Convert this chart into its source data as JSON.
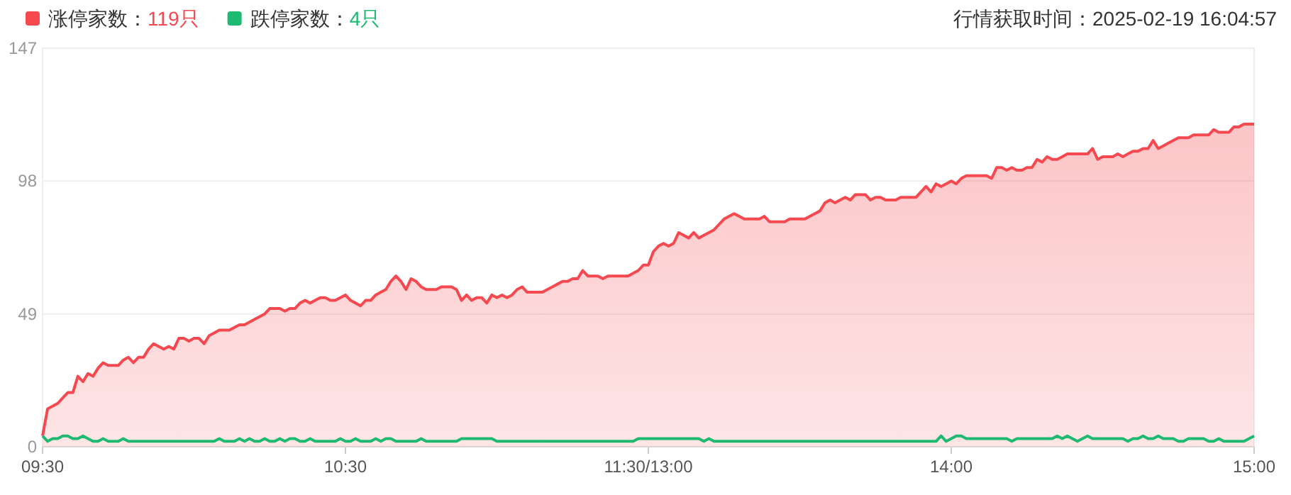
{
  "chart_data": {
    "type": "area",
    "ylim": [
      0,
      147
    ],
    "yticks": [
      0,
      49,
      98,
      147
    ],
    "categories": [
      "09:30",
      null,
      null,
      null,
      null,
      null,
      null,
      null,
      null,
      null,
      null,
      null,
      null,
      null,
      null,
      null,
      null,
      null,
      null,
      null,
      null,
      null,
      null,
      null,
      null,
      null,
      null,
      null,
      null,
      null,
      null,
      null,
      null,
      null,
      null,
      null,
      null,
      null,
      null,
      null,
      null,
      null,
      null,
      null,
      null,
      null,
      null,
      null,
      null,
      null,
      null,
      null,
      null,
      null,
      null,
      null,
      null,
      null,
      null,
      null,
      "10:30",
      null,
      null,
      null,
      null,
      null,
      null,
      null,
      null,
      null,
      null,
      null,
      null,
      null,
      null,
      null,
      null,
      null,
      null,
      null,
      null,
      null,
      null,
      null,
      null,
      null,
      null,
      null,
      null,
      null,
      null,
      null,
      null,
      null,
      null,
      null,
      null,
      null,
      null,
      null,
      null,
      null,
      null,
      null,
      null,
      null,
      null,
      null,
      null,
      null,
      null,
      null,
      null,
      null,
      null,
      null,
      null,
      null,
      null,
      null,
      "11:30/13:00",
      null,
      null,
      null,
      null,
      null,
      null,
      null,
      null,
      null,
      null,
      null,
      null,
      null,
      null,
      null,
      null,
      null,
      null,
      null,
      null,
      null,
      null,
      null,
      null,
      null,
      null,
      null,
      null,
      null,
      null,
      null,
      null,
      null,
      null,
      null,
      null,
      null,
      null,
      null,
      null,
      null,
      null,
      null,
      null,
      null,
      null,
      null,
      null,
      null,
      null,
      null,
      null,
      null,
      null,
      null,
      null,
      null,
      null,
      null,
      "14:00",
      null,
      null,
      null,
      null,
      null,
      null,
      null,
      null,
      null,
      null,
      null,
      null,
      null,
      null,
      null,
      null,
      null,
      null,
      null,
      null,
      null,
      null,
      null,
      null,
      null,
      null,
      null,
      null,
      null,
      null,
      null,
      null,
      null,
      null,
      null,
      null,
      null,
      null,
      null,
      null,
      null,
      null,
      null,
      null,
      null,
      null,
      null,
      null,
      null,
      null,
      null,
      null,
      null,
      null,
      null,
      null,
      null,
      null,
      null,
      "15:00"
    ],
    "grid": "y",
    "legend": "top left",
    "annotations": [
      "行情获取时间：2025-02-19 16:04:57"
    ],
    "series": [
      {
        "name": "涨停家数：119只",
        "color": "#f5484f",
        "values": [
          4,
          14,
          15,
          16,
          18,
          20,
          20,
          26,
          24,
          27,
          26,
          29,
          31,
          30,
          30,
          30,
          32,
          33,
          31,
          33,
          33,
          36,
          38,
          37,
          36,
          37,
          36,
          40,
          40,
          39,
          40,
          40,
          38,
          41,
          42,
          43,
          43,
          43,
          44,
          45,
          45,
          46,
          47,
          48,
          49,
          51,
          51,
          51,
          50,
          51,
          51,
          53,
          54,
          53,
          54,
          55,
          55,
          54,
          54,
          55,
          56,
          54,
          53,
          52,
          54,
          54,
          56,
          57,
          58,
          61,
          63,
          61,
          58,
          62,
          61,
          59,
          58,
          58,
          58,
          59,
          59,
          59,
          58,
          54,
          56,
          54,
          55,
          55,
          53,
          56,
          55,
          56,
          55,
          56,
          58,
          59,
          57,
          57,
          57,
          57,
          58,
          59,
          60,
          61,
          61,
          62,
          62,
          65,
          63,
          63,
          63,
          62,
          63,
          63,
          63,
          63,
          63,
          64,
          65,
          67,
          67,
          72,
          74,
          75,
          74,
          75,
          79,
          78,
          77,
          79,
          77,
          78,
          79,
          80,
          82,
          84,
          85,
          86,
          85,
          84,
          84,
          84,
          84,
          85,
          83,
          83,
          83,
          83,
          84,
          84,
          84,
          84,
          85,
          86,
          87,
          90,
          91,
          90,
          91,
          92,
          91,
          93,
          93,
          93,
          91,
          92,
          92,
          91,
          91,
          91,
          92,
          92,
          92,
          92,
          94,
          96,
          94,
          97,
          96,
          97,
          98,
          97,
          99,
          100,
          100,
          100,
          100,
          100,
          99,
          103,
          103,
          102,
          103,
          102,
          102,
          103,
          103,
          106,
          105,
          107,
          106,
          106,
          107,
          108,
          108,
          108,
          108,
          108,
          110,
          106,
          107,
          107,
          107,
          108,
          107,
          108,
          109,
          109,
          110,
          110,
          113,
          110,
          111,
          112,
          113,
          114,
          114,
          114,
          115,
          115,
          115,
          115,
          117,
          116,
          116,
          116,
          118,
          118,
          119,
          119,
          119
        ]
      },
      {
        "name": "跌停家数：4只",
        "type": "line",
        "color": "#1fba72",
        "values": [
          4,
          2,
          3,
          3,
          4,
          4,
          3,
          3,
          4,
          3,
          2,
          2,
          3,
          2,
          2,
          2,
          3,
          2,
          2,
          2,
          2,
          2,
          2,
          2,
          2,
          2,
          2,
          2,
          2,
          2,
          2,
          2,
          2,
          2,
          2,
          3,
          2,
          2,
          2,
          3,
          2,
          3,
          2,
          2,
          3,
          2,
          2,
          3,
          2,
          3,
          3,
          2,
          2,
          3,
          2,
          2,
          2,
          2,
          2,
          3,
          2,
          2,
          3,
          2,
          2,
          2,
          3,
          2,
          3,
          3,
          2,
          2,
          2,
          2,
          2,
          3,
          2,
          2,
          2,
          2,
          2,
          2,
          2,
          3,
          3,
          3,
          3,
          3,
          3,
          3,
          2,
          2,
          2,
          2,
          2,
          2,
          2,
          2,
          2,
          2,
          2,
          2,
          2,
          2,
          2,
          2,
          2,
          2,
          2,
          2,
          2,
          2,
          2,
          2,
          2,
          2,
          2,
          2,
          3,
          3,
          3,
          3,
          3,
          3,
          3,
          3,
          3,
          3,
          3,
          3,
          3,
          2,
          3,
          2,
          2,
          2,
          2,
          2,
          2,
          2,
          2,
          2,
          2,
          2,
          2,
          2,
          2,
          2,
          2,
          2,
          2,
          2,
          2,
          2,
          2,
          2,
          2,
          2,
          2,
          2,
          2,
          2,
          2,
          2,
          2,
          2,
          2,
          2,
          2,
          2,
          2,
          2,
          2,
          2,
          2,
          2,
          2,
          2,
          4,
          2,
          3,
          4,
          4,
          3,
          3,
          3,
          3,
          3,
          3,
          3,
          3,
          3,
          2,
          3,
          3,
          3,
          3,
          3,
          3,
          3,
          3,
          4,
          3,
          4,
          3,
          2,
          3,
          4,
          3,
          3,
          3,
          3,
          3,
          3,
          3,
          2,
          3,
          3,
          4,
          3,
          3,
          4,
          3,
          3,
          3,
          2,
          2,
          3,
          3,
          3,
          3,
          2,
          2,
          3,
          2,
          2,
          2,
          2,
          2,
          3,
          4
        ]
      }
    ]
  }
}
